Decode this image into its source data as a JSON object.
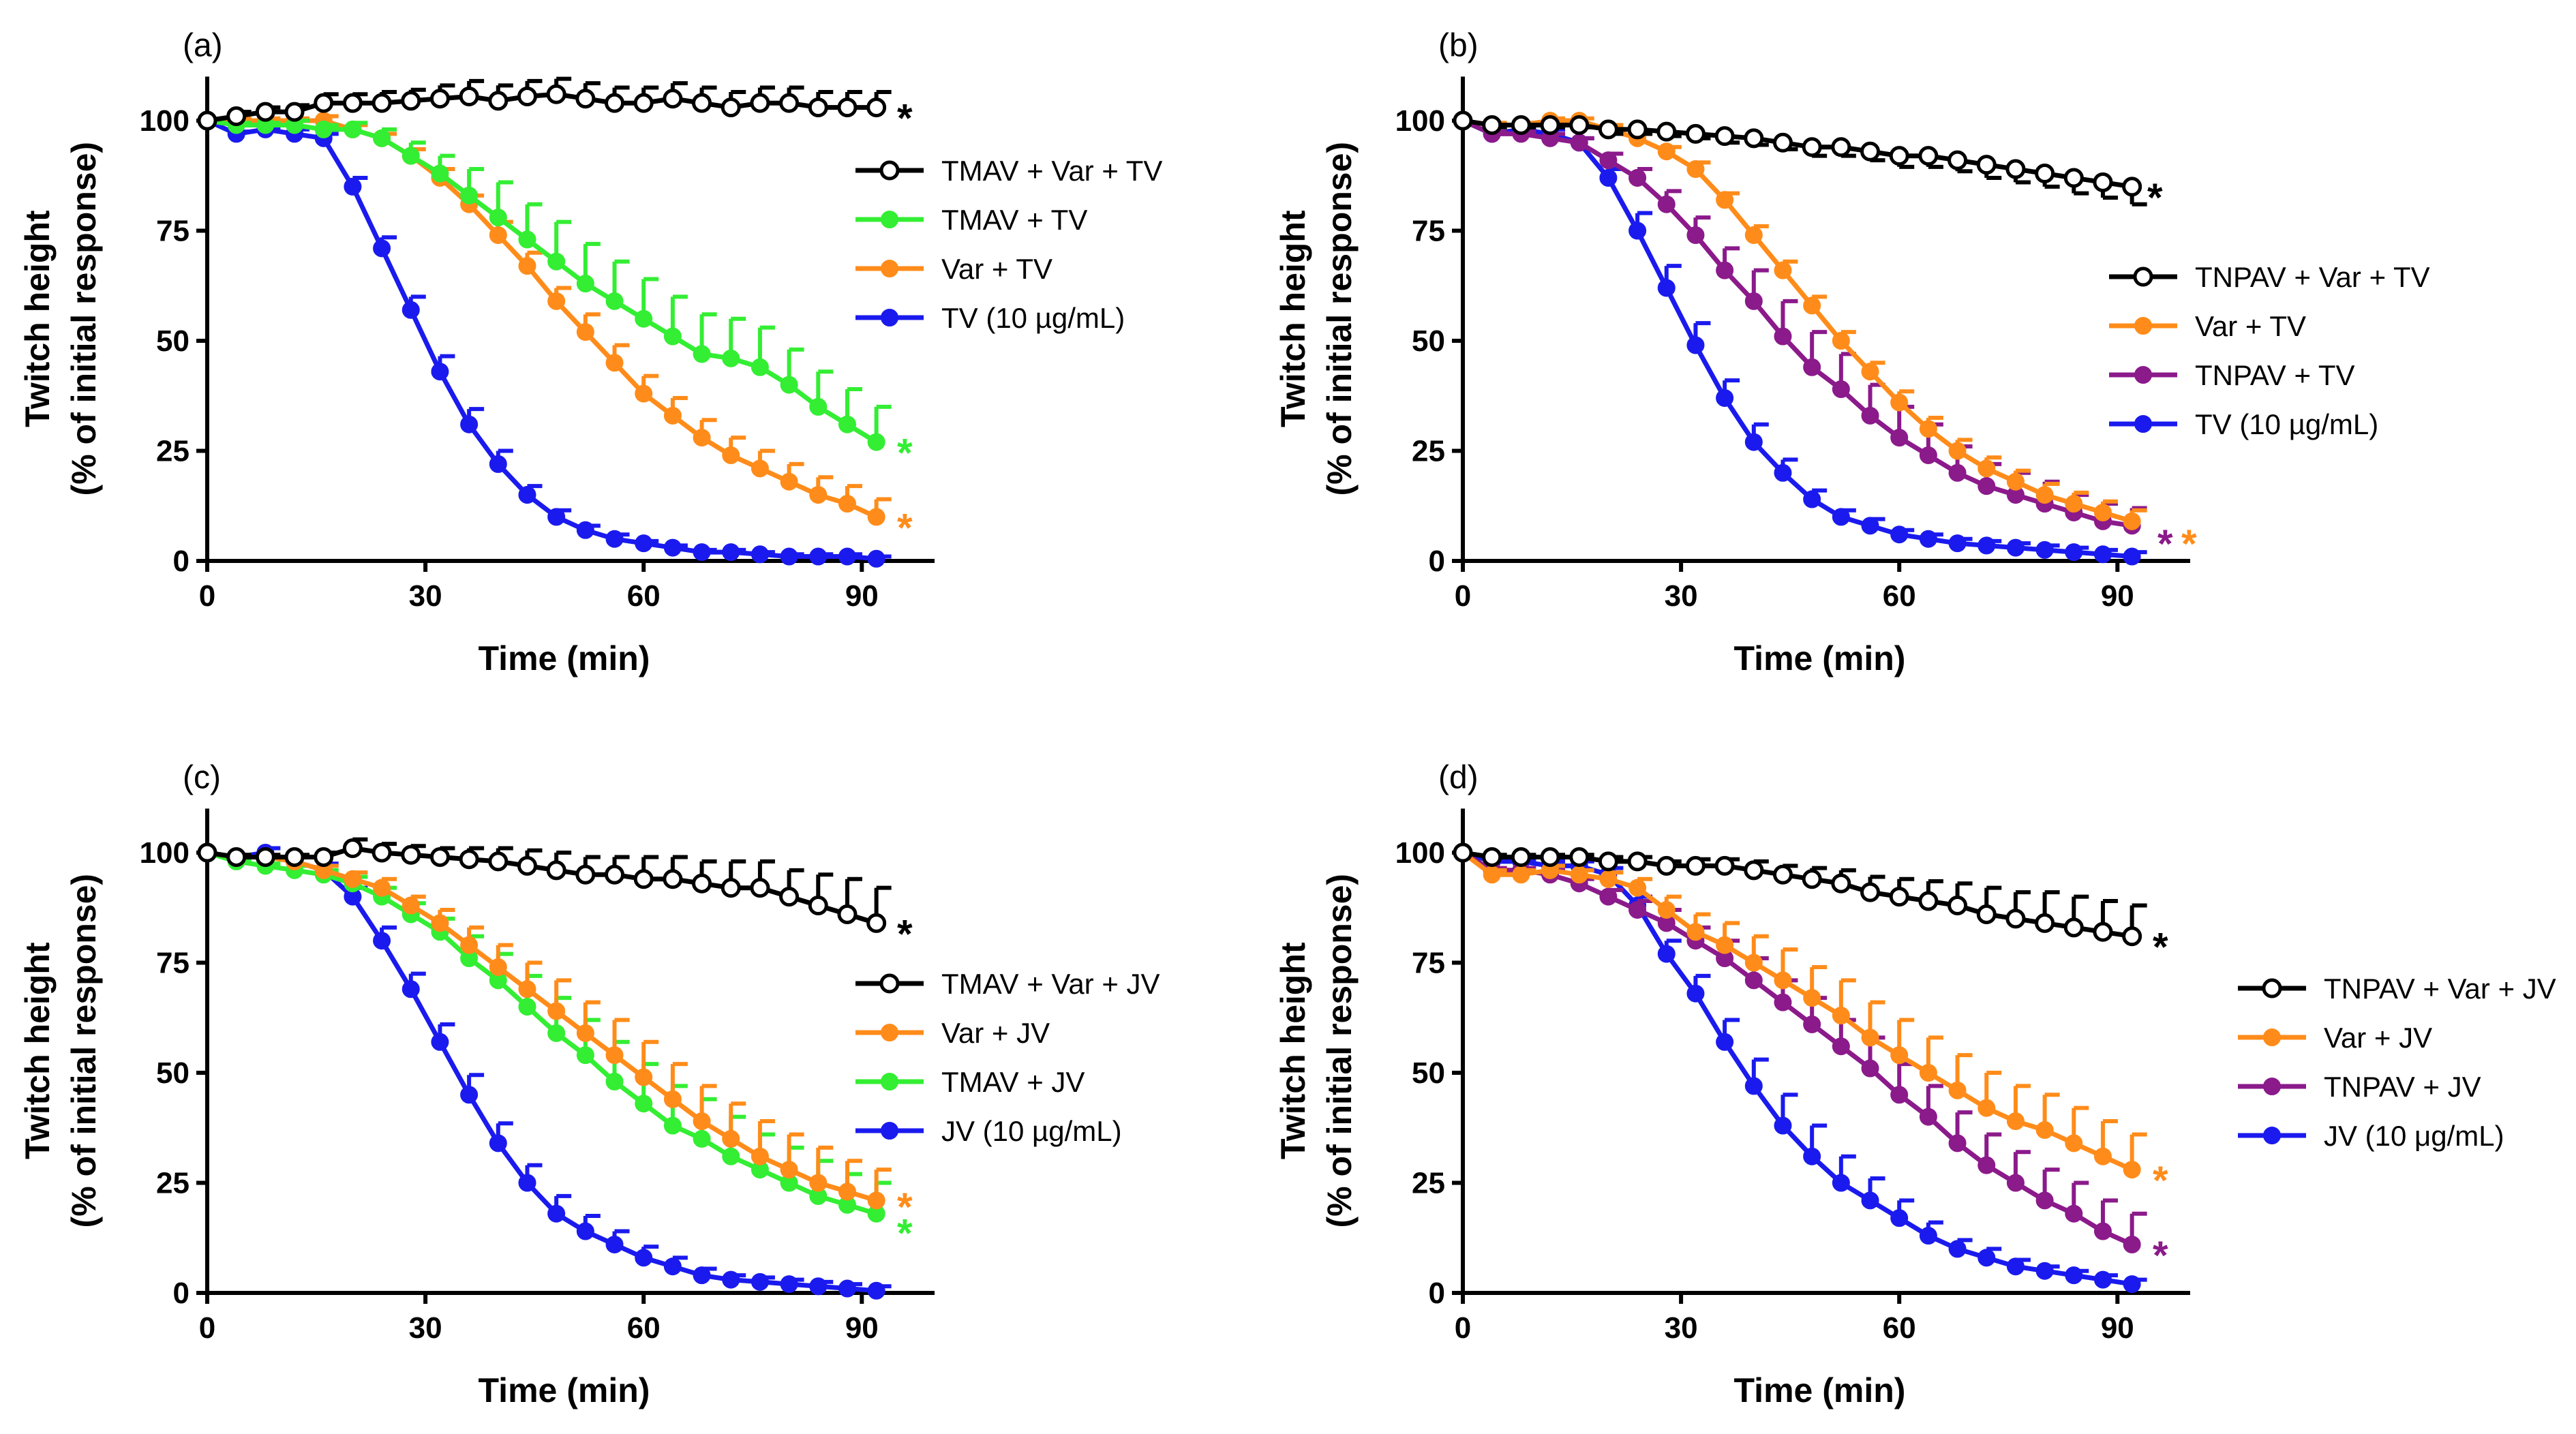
{
  "chart_data": [
    {
      "type": "line",
      "panel_label": "(a)",
      "xlabel": "Time (min)",
      "ylabel_line1": "Twitch height",
      "ylabel_line2": "(% of initial response)",
      "xticks": [
        0,
        30,
        60,
        90
      ],
      "yticks": [
        0,
        25,
        50,
        75,
        100
      ],
      "xticks_text": [
        "0",
        "30",
        "60",
        "90"
      ],
      "yticks_text": [
        "0",
        "25",
        "50",
        "75",
        "100"
      ],
      "xlim": [
        0,
        100
      ],
      "ylim": [
        0,
        110
      ],
      "x": [
        0,
        4,
        8,
        12,
        16,
        20,
        24,
        28,
        32,
        36,
        40,
        44,
        48,
        52,
        56,
        60,
        64,
        68,
        72,
        76,
        80,
        84,
        88,
        92
      ],
      "legend_position": "right-upper",
      "series": [
        {
          "name": "TMAV + Var + TV",
          "color": "#000000",
          "marker": "open",
          "err_dir": "up",
          "values": [
            100,
            101,
            102,
            102,
            104,
            104,
            104,
            104.5,
            105,
            105.5,
            104.5,
            105.5,
            106,
            105,
            104,
            104,
            105,
            104,
            103,
            104,
            104,
            103,
            103,
            103
          ],
          "errors": [
            0,
            1,
            1,
            1.5,
            2,
            2,
            2.5,
            2.5,
            3,
            3.5,
            3.5,
            3.5,
            3.5,
            3.5,
            3.5,
            3.5,
            3.5,
            3.5,
            3.5,
            3.5,
            3.5,
            3.5,
            3.5,
            3.5
          ],
          "star": "*"
        },
        {
          "name": "TMAV + TV",
          "color": "#33ee33",
          "marker": "filled",
          "err_dir": "up",
          "values": [
            100,
            99,
            99,
            99,
            98,
            98,
            96,
            92,
            88,
            83,
            78,
            73,
            68,
            63,
            59,
            55,
            51,
            47,
            46,
            44,
            40,
            35,
            31,
            27
          ],
          "errors": [
            0,
            0.5,
            0.5,
            1,
            1,
            1.5,
            2,
            3,
            4,
            6,
            8,
            8,
            9,
            9,
            9,
            9,
            9,
            9,
            9,
            9,
            8,
            8,
            8,
            8
          ],
          "star": "*"
        },
        {
          "name": "Var + TV",
          "color": "#ff8c1a",
          "marker": "filled",
          "err_dir": "up",
          "values": [
            100,
            100,
            100,
            100,
            100,
            98,
            96,
            92,
            87,
            81,
            74,
            67,
            59,
            52,
            45,
            38,
            33,
            28,
            24,
            21,
            18,
            15,
            13,
            10
          ],
          "errors": [
            0,
            0.5,
            0.5,
            0.5,
            1,
            1,
            1,
            1.5,
            2,
            2,
            3,
            3,
            3,
            4,
            4,
            4,
            4,
            4,
            4,
            4,
            4,
            4,
            4,
            4
          ],
          "star": "*"
        },
        {
          "name": "TV (10 µg/mL)",
          "color": "#1a1aee",
          "marker": "filled",
          "err_dir": "up",
          "values": [
            100,
            97,
            98,
            97,
            96,
            85,
            71,
            57,
            43,
            31,
            22,
            15,
            10,
            7,
            5,
            4,
            3,
            2,
            2,
            1.5,
            1,
            1,
            1,
            0.5
          ],
          "errors": [
            0,
            0.5,
            0.5,
            1,
            1,
            2,
            2.5,
            3,
            3.5,
            3.5,
            3,
            2,
            1.5,
            1,
            1,
            0.5,
            0.5,
            0.5,
            0.5,
            0.5,
            0.5,
            0.5,
            0.5,
            0.5
          ],
          "star": ""
        }
      ]
    },
    {
      "type": "line",
      "panel_label": "(b)",
      "xlabel": "Time (min)",
      "ylabel_line1": "Twitch height",
      "ylabel_line2": "(% of initial response)",
      "xticks": [
        0,
        30,
        60,
        90
      ],
      "yticks": [
        0,
        25,
        50,
        75,
        100
      ],
      "xticks_text": [
        "0",
        "30",
        "60",
        "90"
      ],
      "yticks_text": [
        "0",
        "25",
        "50",
        "75",
        "100"
      ],
      "xlim": [
        0,
        100
      ],
      "ylim": [
        0,
        110
      ],
      "x": [
        0,
        4,
        8,
        12,
        16,
        20,
        24,
        28,
        32,
        36,
        40,
        44,
        48,
        52,
        56,
        60,
        64,
        68,
        72,
        76,
        80,
        84,
        88,
        92
      ],
      "legend_position": "right-middle",
      "series": [
        {
          "name": "TNPAV + Var + TV",
          "color": "#000000",
          "marker": "open",
          "err_dir": "down",
          "values": [
            100,
            99,
            99,
            99,
            99,
            98,
            98,
            97.5,
            97,
            96.5,
            96,
            95,
            94,
            94,
            93,
            92,
            92,
            91,
            90,
            89,
            88,
            87,
            86,
            85
          ],
          "errors": [
            0,
            0.5,
            0.5,
            0.5,
            0.5,
            1,
            1,
            1,
            1,
            1.5,
            1.5,
            1.5,
            2,
            2,
            2,
            2.5,
            2.5,
            2.5,
            3,
            3,
            3,
            3.5,
            3.5,
            4
          ],
          "star": "*"
        },
        {
          "name": "Var + TV",
          "color": "#ff8c1a",
          "marker": "filled",
          "err_dir": "up",
          "values": [
            100,
            99,
            99,
            100,
            100,
            98,
            96,
            93,
            89,
            82,
            74,
            66,
            58,
            50,
            43,
            36,
            30,
            25,
            21,
            18,
            15,
            13,
            11,
            9
          ],
          "errors": [
            0,
            0.5,
            0.5,
            0.5,
            0.5,
            1,
            1,
            1,
            1.5,
            1.5,
            2,
            2,
            2,
            2,
            2,
            2.5,
            2.5,
            2.5,
            2.5,
            2.5,
            2.5,
            2.5,
            2.5,
            2.5
          ],
          "star": "*"
        },
        {
          "name": "TNPAV + TV",
          "color": "#8b1a8b",
          "marker": "filled",
          "err_dir": "up",
          "values": [
            100,
            97,
            97,
            96,
            95,
            91,
            87,
            81,
            74,
            66,
            59,
            51,
            44,
            39,
            33,
            28,
            24,
            20,
            17,
            15,
            13,
            11,
            9,
            8
          ],
          "errors": [
            0,
            0.5,
            0.5,
            1,
            1,
            1.5,
            2,
            3,
            4,
            5,
            7,
            8,
            8,
            8,
            7,
            7,
            7,
            6,
            5,
            5,
            5,
            4,
            4,
            4
          ],
          "star": "*"
        },
        {
          "name": "TV (10 µg/mL)",
          "color": "#1a1aee",
          "marker": "filled",
          "err_dir": "up",
          "values": [
            100,
            97,
            98,
            97,
            95,
            87,
            75,
            62,
            49,
            37,
            27,
            20,
            14,
            10,
            8,
            6,
            5,
            4,
            3.5,
            3,
            2.5,
            2,
            1.5,
            1
          ],
          "errors": [
            0,
            0.5,
            0.5,
            1,
            1,
            2,
            4,
            5,
            5,
            4,
            4,
            3,
            2,
            1.5,
            1.5,
            1,
            1,
            1,
            1,
            1,
            1,
            1,
            1,
            1
          ],
          "star": ""
        }
      ]
    },
    {
      "type": "line",
      "panel_label": "(c)",
      "xlabel": "Time (min)",
      "ylabel_line1": "Twitch height",
      "ylabel_line2": "(% of initial response)",
      "xticks": [
        0,
        30,
        60,
        90
      ],
      "yticks": [
        0,
        25,
        50,
        75,
        100
      ],
      "xticks_text": [
        "0",
        "30",
        "60",
        "90"
      ],
      "yticks_text": [
        "0",
        "25",
        "50",
        "75",
        "100"
      ],
      "xlim": [
        0,
        100
      ],
      "ylim": [
        0,
        110
      ],
      "x": [
        0,
        4,
        8,
        12,
        16,
        20,
        24,
        28,
        32,
        36,
        40,
        44,
        48,
        52,
        56,
        60,
        64,
        68,
        72,
        76,
        80,
        84,
        88,
        92
      ],
      "legend_position": "right-middle",
      "series": [
        {
          "name": "TMAV + Var + JV",
          "color": "#000000",
          "marker": "open",
          "err_dir": "up",
          "values": [
            100,
            99,
            99,
            99,
            99,
            101,
            100,
            99.5,
            99,
            98.5,
            98,
            97,
            96,
            95,
            95,
            94,
            94,
            93,
            92,
            92,
            90,
            88,
            86,
            84
          ],
          "errors": [
            0,
            0.5,
            0.5,
            0.5,
            1,
            2,
            2,
            2,
            2,
            2.5,
            3,
            3.5,
            4,
            4,
            4,
            5,
            5,
            5,
            6,
            6,
            6,
            7,
            8,
            8
          ],
          "star": "*"
        },
        {
          "name": "Var + JV",
          "color": "#ff8c1a",
          "marker": "filled",
          "err_dir": "up",
          "values": [
            100,
            99,
            99,
            98,
            96,
            94,
            92,
            88,
            84,
            79,
            74,
            69,
            64,
            59,
            54,
            49,
            44,
            39,
            35,
            31,
            28,
            25,
            23,
            21
          ],
          "errors": [
            0,
            0.5,
            0.5,
            1,
            1,
            1.5,
            2,
            2,
            3,
            4,
            5,
            6,
            7,
            7,
            8,
            8,
            8,
            8,
            8,
            8,
            8,
            8,
            7,
            7
          ],
          "star": "*"
        },
        {
          "name": "TMAV + JV",
          "color": "#33ee33",
          "marker": "filled",
          "err_dir": "up",
          "values": [
            100,
            98,
            97,
            96,
            95,
            93,
            90,
            86,
            82,
            76,
            71,
            65,
            59,
            54,
            48,
            43,
            38,
            35,
            31,
            28,
            25,
            22,
            20,
            18
          ],
          "errors": [
            0,
            0.5,
            0.5,
            1,
            1,
            1.5,
            2,
            2.5,
            3,
            5,
            6,
            7,
            8,
            8,
            9,
            9,
            9,
            9,
            9,
            8,
            8,
            8,
            7,
            7
          ],
          "star": "*"
        },
        {
          "name": "JV (10 µg/mL)",
          "color": "#1a1aee",
          "marker": "filled",
          "err_dir": "up",
          "values": [
            100,
            99,
            100,
            98,
            96,
            90,
            80,
            69,
            57,
            45,
            34,
            25,
            18,
            14,
            11,
            8,
            6,
            4,
            3,
            2.5,
            2,
            1.5,
            1,
            0.5
          ],
          "errors": [
            0,
            0.5,
            1,
            1,
            1.5,
            2,
            3,
            3.5,
            4,
            4.5,
            4.5,
            4,
            4,
            3.5,
            3,
            2.5,
            2,
            1.5,
            1,
            1,
            1,
            1,
            1,
            1
          ],
          "star": ""
        }
      ]
    },
    {
      "type": "line",
      "panel_label": "(d)",
      "xlabel": "Time (min)",
      "ylabel_line1": "Twitch height",
      "ylabel_line2": "(% of initial response)",
      "xticks": [
        0,
        30,
        60,
        90
      ],
      "yticks": [
        0,
        25,
        50,
        75,
        100
      ],
      "xticks_text": [
        "0",
        "30",
        "60",
        "90"
      ],
      "yticks_text": [
        "0",
        "25",
        "50",
        "75",
        "100"
      ],
      "xlim": [
        0,
        100
      ],
      "ylim": [
        0,
        110
      ],
      "x": [
        0,
        4,
        8,
        12,
        16,
        20,
        24,
        28,
        32,
        36,
        40,
        44,
        48,
        52,
        56,
        60,
        64,
        68,
        72,
        76,
        80,
        84,
        88,
        92
      ],
      "legend_position": "right-middle",
      "series": [
        {
          "name": "TNPAV + Var + JV",
          "color": "#000000",
          "marker": "open",
          "err_dir": "up",
          "values": [
            100,
            99,
            99,
            99,
            99,
            98,
            98,
            97,
            97,
            97,
            96,
            95,
            94,
            93,
            91,
            90,
            89,
            88,
            86,
            85,
            84,
            83,
            82,
            81
          ],
          "errors": [
            0,
            0.5,
            0.5,
            0.5,
            0.5,
            1,
            1,
            1,
            1.5,
            1.5,
            2,
            2,
            2.5,
            3,
            3.5,
            4,
            4.5,
            5,
            6,
            6,
            7,
            7,
            7,
            7
          ],
          "star": "*"
        },
        {
          "name": "Var + JV",
          "color": "#ff8c1a",
          "marker": "filled",
          "err_dir": "up",
          "values": [
            100,
            95,
            95,
            96,
            95,
            94,
            92,
            87,
            82,
            79,
            75,
            71,
            67,
            63,
            58,
            54,
            50,
            46,
            42,
            39,
            37,
            34,
            31,
            28
          ],
          "errors": [
            0,
            1,
            1,
            1,
            1,
            1.5,
            2,
            3,
            4,
            5,
            6,
            7,
            7,
            8,
            8,
            8,
            8,
            8,
            8,
            8,
            8,
            8,
            8,
            8
          ],
          "star": "*"
        },
        {
          "name": "TNPAV + JV",
          "color": "#8b1a8b",
          "marker": "filled",
          "err_dir": "up",
          "values": [
            100,
            96,
            96,
            95,
            93,
            90,
            87,
            84,
            80,
            76,
            71,
            66,
            61,
            56,
            51,
            45,
            40,
            34,
            29,
            25,
            21,
            18,
            14,
            11
          ],
          "errors": [
            0,
            0.5,
            0.5,
            1,
            1,
            1.5,
            2,
            3,
            3,
            4,
            5,
            5,
            6,
            6,
            7,
            7,
            7,
            7,
            7,
            7,
            7,
            7,
            7,
            7
          ],
          "star": "*"
        },
        {
          "name": "JV (10 μg/mL)",
          "color": "#1a1aee",
          "marker": "filled",
          "err_dir": "up",
          "values": [
            100,
            98,
            98,
            97,
            97,
            95,
            88,
            77,
            68,
            57,
            47,
            38,
            31,
            25,
            21,
            17,
            13,
            10,
            8,
            6,
            5,
            4,
            3,
            2
          ],
          "errors": [
            0,
            0.5,
            0.5,
            1,
            1,
            1.5,
            2,
            3,
            4,
            5,
            6,
            7,
            7,
            6,
            5,
            4,
            3,
            2,
            2,
            1.5,
            1,
            1,
            1,
            1
          ],
          "star": ""
        }
      ]
    }
  ]
}
